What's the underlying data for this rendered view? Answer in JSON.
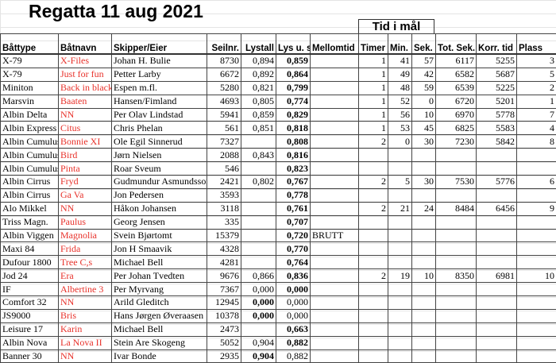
{
  "title": "Regatta 11 aug 2021",
  "group_header": "Tid i mål",
  "colors": {
    "boat_name": "#e8312a"
  },
  "columns": [
    "Båttype",
    "Båtnavn",
    "Skipper/Eier",
    "Seilnr.",
    "Lystall",
    "Lys u. spinn.",
    "Mellomtid",
    "Timer",
    "Min.",
    "Sek.",
    "Tot. Sek.",
    "Korr. tid",
    "Plass"
  ],
  "rows": [
    {
      "type": "X-79",
      "name": "X-Files",
      "skipper": "Johan H. Bulie",
      "seilnr": "8730",
      "lystall": "0,894",
      "lys": "0,859",
      "mellom": "",
      "timer": "1",
      "min": "41",
      "sek": "57",
      "tot": "6117",
      "korr": "5255",
      "plass": "3",
      "bold": "lys"
    },
    {
      "type": "X-79",
      "name": "Just for fun",
      "skipper": "Petter Larby",
      "seilnr": "6672",
      "lystall": "0,892",
      "lys": "0,864",
      "mellom": "",
      "timer": "1",
      "min": "49",
      "sek": "42",
      "tot": "6582",
      "korr": "5687",
      "plass": "5",
      "bold": "lys"
    },
    {
      "type": "Miniton",
      "name": "Back in black",
      "skipper": "Espen m.fl.",
      "seilnr": "5280",
      "lystall": "0,821",
      "lys": "0,799",
      "mellom": "",
      "timer": "1",
      "min": "48",
      "sek": "59",
      "tot": "6539",
      "korr": "5225",
      "plass": "2",
      "bold": "lys"
    },
    {
      "type": "Marsvin",
      "name": "Baaten",
      "skipper": "Hansen/Fimland",
      "seilnr": "4693",
      "lystall": "0,805",
      "lys": "0,774",
      "mellom": "",
      "timer": "1",
      "min": "52",
      "sek": "0",
      "tot": "6720",
      "korr": "5201",
      "plass": "1",
      "bold": "lys"
    },
    {
      "type": "Albin Delta",
      "name": "NN",
      "skipper": "Per Olav Lindstad",
      "seilnr": "5941",
      "lystall": "0,859",
      "lys": "0,829",
      "mellom": "",
      "timer": "1",
      "min": "56",
      "sek": "10",
      "tot": "6970",
      "korr": "5778",
      "plass": "7",
      "bold": "lys"
    },
    {
      "type": "Albin Express",
      "name": "Citus",
      "skipper": "Chris Phelan",
      "seilnr": "561",
      "lystall": "0,851",
      "lys": "0,818",
      "mellom": "",
      "timer": "1",
      "min": "53",
      "sek": "45",
      "tot": "6825",
      "korr": "5583",
      "plass": "4",
      "bold": "lys"
    },
    {
      "type": "Albin Cumulus",
      "name": "Bonnie XI",
      "skipper": "Ole Egil Sinnerud",
      "seilnr": "7327",
      "lystall": "",
      "lys": "0,808",
      "mellom": "",
      "timer": "2",
      "min": "0",
      "sek": "30",
      "tot": "7230",
      "korr": "5842",
      "plass": "8",
      "bold": "lys"
    },
    {
      "type": "Albin Cumulus",
      "name": "Bird",
      "skipper": "Jørn Nielsen",
      "seilnr": "2088",
      "lystall": "0,843",
      "lys": "0,816",
      "mellom": "",
      "timer": "",
      "min": "",
      "sek": "",
      "tot": "",
      "korr": "",
      "plass": "",
      "bold": "lys"
    },
    {
      "type": "Albin Cumulus",
      "name": "Pinta",
      "skipper": "Roar Sveum",
      "seilnr": "546",
      "lystall": "",
      "lys": "0,823",
      "mellom": "",
      "timer": "",
      "min": "",
      "sek": "",
      "tot": "",
      "korr": "",
      "plass": "",
      "bold": "lys"
    },
    {
      "type": "Albin Cirrus",
      "name": "Fryd",
      "skipper": "Gudmundur Asmundsson",
      "seilnr": "2421",
      "lystall": "0,802",
      "lys": "0,767",
      "mellom": "",
      "timer": "2",
      "min": "5",
      "sek": "30",
      "tot": "7530",
      "korr": "5776",
      "plass": "6",
      "bold": "lys"
    },
    {
      "type": "Albin Cirrus",
      "name": "Ga Va",
      "skipper": "Jon Pedersen",
      "seilnr": "3593",
      "lystall": "",
      "lys": "0,778",
      "mellom": "",
      "timer": "",
      "min": "",
      "sek": "",
      "tot": "",
      "korr": "",
      "plass": "",
      "bold": "lys"
    },
    {
      "type": "Alo Mikkel",
      "name": "NN",
      "skipper": "Håkon Johansen",
      "seilnr": "3118",
      "lystall": "",
      "lys": "0,761",
      "mellom": "",
      "timer": "2",
      "min": "21",
      "sek": "24",
      "tot": "8484",
      "korr": "6456",
      "plass": "9",
      "bold": "lys"
    },
    {
      "type": "Triss Magn.",
      "name": "Paulus",
      "skipper": "Georg Jensen",
      "seilnr": "335",
      "lystall": "",
      "lys": "0,707",
      "mellom": "",
      "timer": "",
      "min": "",
      "sek": "",
      "tot": "",
      "korr": "",
      "plass": "",
      "bold": "lys"
    },
    {
      "type": "Albin Viggen",
      "name": "Magnolia",
      "skipper": "Svein Bjørtomt",
      "seilnr": "15379",
      "lystall": "",
      "lys": "0,720",
      "mellom": "BRUTT",
      "timer": "",
      "min": "",
      "sek": "",
      "tot": "",
      "korr": "",
      "plass": "",
      "bold": "lys"
    },
    {
      "type": "Maxi 84",
      "name": "Frida",
      "skipper": "Jon H Smaavik",
      "seilnr": "4328",
      "lystall": "",
      "lys": "0,770",
      "mellom": "",
      "timer": "",
      "min": "",
      "sek": "",
      "tot": "",
      "korr": "",
      "plass": "",
      "bold": "lys"
    },
    {
      "type": "Dufour 1800",
      "name": "Tree C,s",
      "skipper": "Michael Bell",
      "seilnr": "4281",
      "lystall": "",
      "lys": "0,764",
      "mellom": "",
      "timer": "",
      "min": "",
      "sek": "",
      "tot": "",
      "korr": "",
      "plass": "",
      "bold": "lys"
    },
    {
      "type": "Jod 24",
      "name": "Era",
      "skipper": "Per Johan Tvedten",
      "seilnr": "9676",
      "lystall": "0,866",
      "lys": "0,836",
      "mellom": "",
      "timer": "2",
      "min": "19",
      "sek": "10",
      "tot": "8350",
      "korr": "6981",
      "plass": "10",
      "bold": "lys"
    },
    {
      "type": "IF",
      "name": "Albertine 3",
      "skipper": "Per Myrvang",
      "seilnr": "7367",
      "lystall": "0,000",
      "lys": "0,000",
      "mellom": "",
      "timer": "",
      "min": "",
      "sek": "",
      "tot": "",
      "korr": "",
      "plass": "",
      "bold": "lys"
    },
    {
      "type": "Comfort 32",
      "name": "NN",
      "skipper": "Arild Gleditch",
      "seilnr": "12945",
      "lystall": "0,000",
      "lys": "0,000",
      "mellom": "",
      "timer": "",
      "min": "",
      "sek": "",
      "tot": "",
      "korr": "",
      "plass": "",
      "bold": "lystall"
    },
    {
      "type": "JS9000",
      "name": "Bris",
      "skipper": "Hans Jørgen Øveraasen",
      "seilnr": "10378",
      "lystall": "0,000",
      "lys": "0,000",
      "mellom": "",
      "timer": "",
      "min": "",
      "sek": "",
      "tot": "",
      "korr": "",
      "plass": "",
      "bold": "lystall"
    },
    {
      "type": "Leisure 17",
      "name": "Karin",
      "skipper": "Michael Bell",
      "seilnr": "2473",
      "lystall": "",
      "lys": "0,663",
      "mellom": "",
      "timer": "",
      "min": "",
      "sek": "",
      "tot": "",
      "korr": "",
      "plass": "",
      "bold": "lys"
    },
    {
      "type": "Albin Nova",
      "name": "La Nova II",
      "skipper": "Stein Are Skogeng",
      "seilnr": "5052",
      "lystall": "0,904",
      "lys": "0,882",
      "mellom": "",
      "timer": "",
      "min": "",
      "sek": "",
      "tot": "",
      "korr": "",
      "plass": "",
      "bold": "lys"
    },
    {
      "type": "Banner 30",
      "name": "NN",
      "skipper": "Ivar Bonde",
      "seilnr": "2935",
      "lystall": "0,904",
      "lys": "0,882",
      "mellom": "",
      "timer": "",
      "min": "",
      "sek": "",
      "tot": "",
      "korr": "",
      "plass": "",
      "bold": "lystall"
    }
  ]
}
